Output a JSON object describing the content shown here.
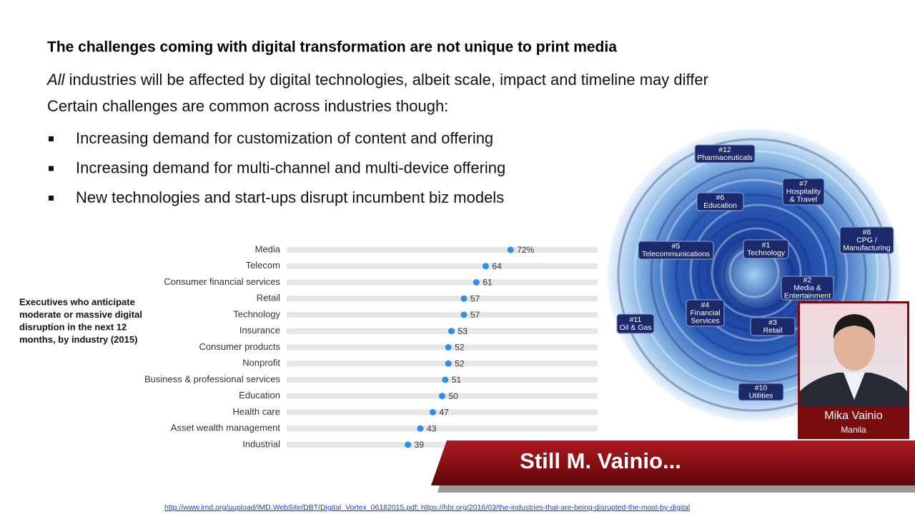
{
  "slide": {
    "title": "The challenges coming with digital transformation are not unique to print media",
    "intro": [
      {
        "em": "All",
        "text": " industries will be affected by digital technologies, albeit scale, impact and timeline may differ"
      },
      {
        "text": "Certain challenges are common across industries though:"
      }
    ],
    "bullets": [
      "Increasing demand for customization of content and offering",
      "Increasing demand for multi-channel and multi-device offering",
      "New technologies and start-ups disrupt incumbent biz models"
    ]
  },
  "chart_data": {
    "type": "dot",
    "title": [
      "Executives who anticipate",
      "moderate or massive digital",
      "disruption in the next 12",
      "months, by industry (2015)"
    ],
    "categories": [
      "Media",
      "Telecom",
      "Consumer financial services",
      "Retail",
      "Technology",
      "Insurance",
      "Consumer products",
      "Nonprofit",
      "Business & professional services",
      "Education",
      "Health care",
      "Asset wealth management",
      "Industrial"
    ],
    "values": [
      72,
      64,
      61,
      57,
      57,
      53,
      52,
      52,
      51,
      50,
      47,
      43,
      39
    ],
    "value_labels": [
      "72%",
      "64",
      "61",
      "57",
      "57",
      "53",
      "52",
      "52",
      "51",
      "50",
      "47",
      "43",
      "39"
    ],
    "xlim": [
      0,
      100
    ],
    "color": "#2f8fe8"
  },
  "vortex": {
    "nodes": [
      {
        "rank": "#12",
        "name": [
          "Pharmaceuticals"
        ]
      },
      {
        "rank": "#7",
        "name": [
          "Hospitality",
          "& Travel"
        ]
      },
      {
        "rank": "#6",
        "name": [
          "Education"
        ]
      },
      {
        "rank": "#8",
        "name": [
          "CPG /",
          "Manufacturing"
        ]
      },
      {
        "rank": "#5",
        "name": [
          "Telecommunications"
        ]
      },
      {
        "rank": "#1",
        "name": [
          "Technology"
        ]
      },
      {
        "rank": "#2",
        "name": [
          "Media &",
          "Entertainment"
        ]
      },
      {
        "rank": "#4",
        "name": [
          "Financial",
          "Services"
        ]
      },
      {
        "rank": "#11",
        "name": [
          "Oil & Gas"
        ]
      },
      {
        "rank": "#3",
        "name": [
          "Retail"
        ]
      },
      {
        "rank": "#10",
        "name": [
          "Utilities"
        ]
      }
    ]
  },
  "presenter": {
    "name": "Mika Vainio",
    "location": "Manila"
  },
  "banner": "Still M. Vainio...",
  "footer": {
    "links": [
      "http://www.imd.org/uupload/IMD.WebSite/DBT/Digital_Vortex_06182015.pdf",
      "https://hbr.org/2016/03/the-industries-that-are-being-disrupted-the-most-by-digital"
    ],
    "separator": "; "
  }
}
